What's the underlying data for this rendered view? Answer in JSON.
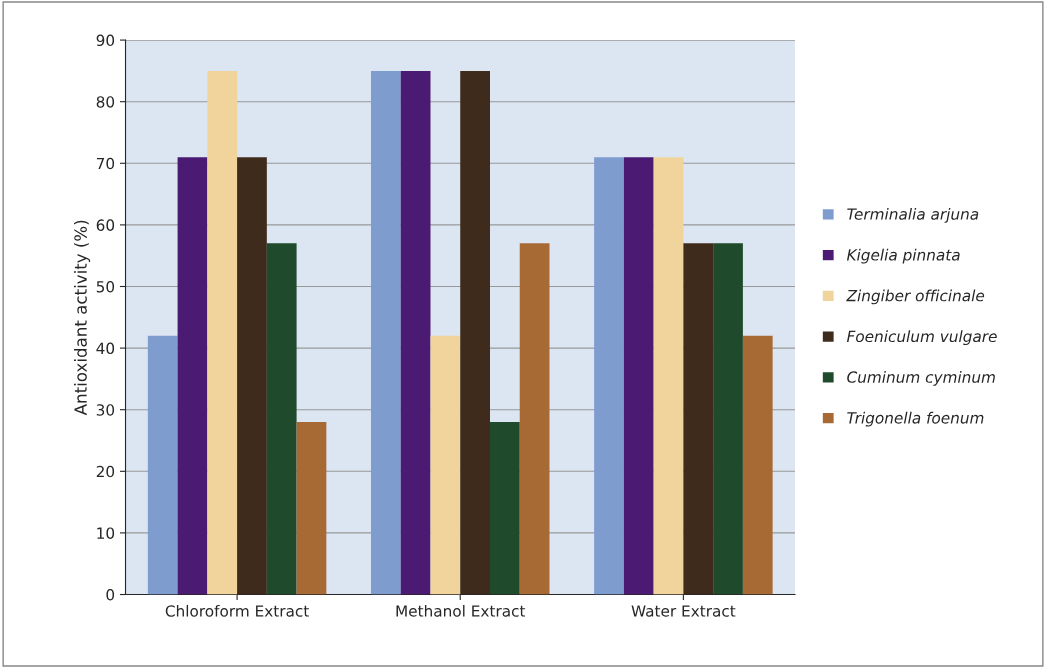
{
  "chart_data": {
    "type": "bar",
    "ylabel": "Antioxidant activity (%)",
    "categories": [
      "Chloroform Extract",
      "Methanol Extract",
      "Water Extract"
    ],
    "series": [
      {
        "name": "Terminalia arjuna",
        "color": "#7f9ccf",
        "values": [
          42,
          85,
          71
        ]
      },
      {
        "name": "Kigelia pinnata",
        "color": "#4b1a72",
        "values": [
          71,
          85,
          71
        ]
      },
      {
        "name": "Zingiber officinale",
        "color": "#f0d49c",
        "values": [
          85,
          42,
          71
        ]
      },
      {
        "name": "Foeniculum vulgare",
        "color": "#3f2b1c",
        "values": [
          71,
          85,
          57
        ]
      },
      {
        "name": "Cuminum cyminum",
        "color": "#1f4a2c",
        "values": [
          57,
          28,
          57
        ]
      },
      {
        "name": "Trigonella foenum",
        "color": "#a86a35",
        "values": [
          28,
          57,
          42
        ]
      }
    ],
    "ylim": [
      0,
      90
    ],
    "yticks": [
      0,
      10,
      20,
      30,
      40,
      50,
      60,
      70,
      80,
      90
    ],
    "grid": "y",
    "legend": "right"
  }
}
